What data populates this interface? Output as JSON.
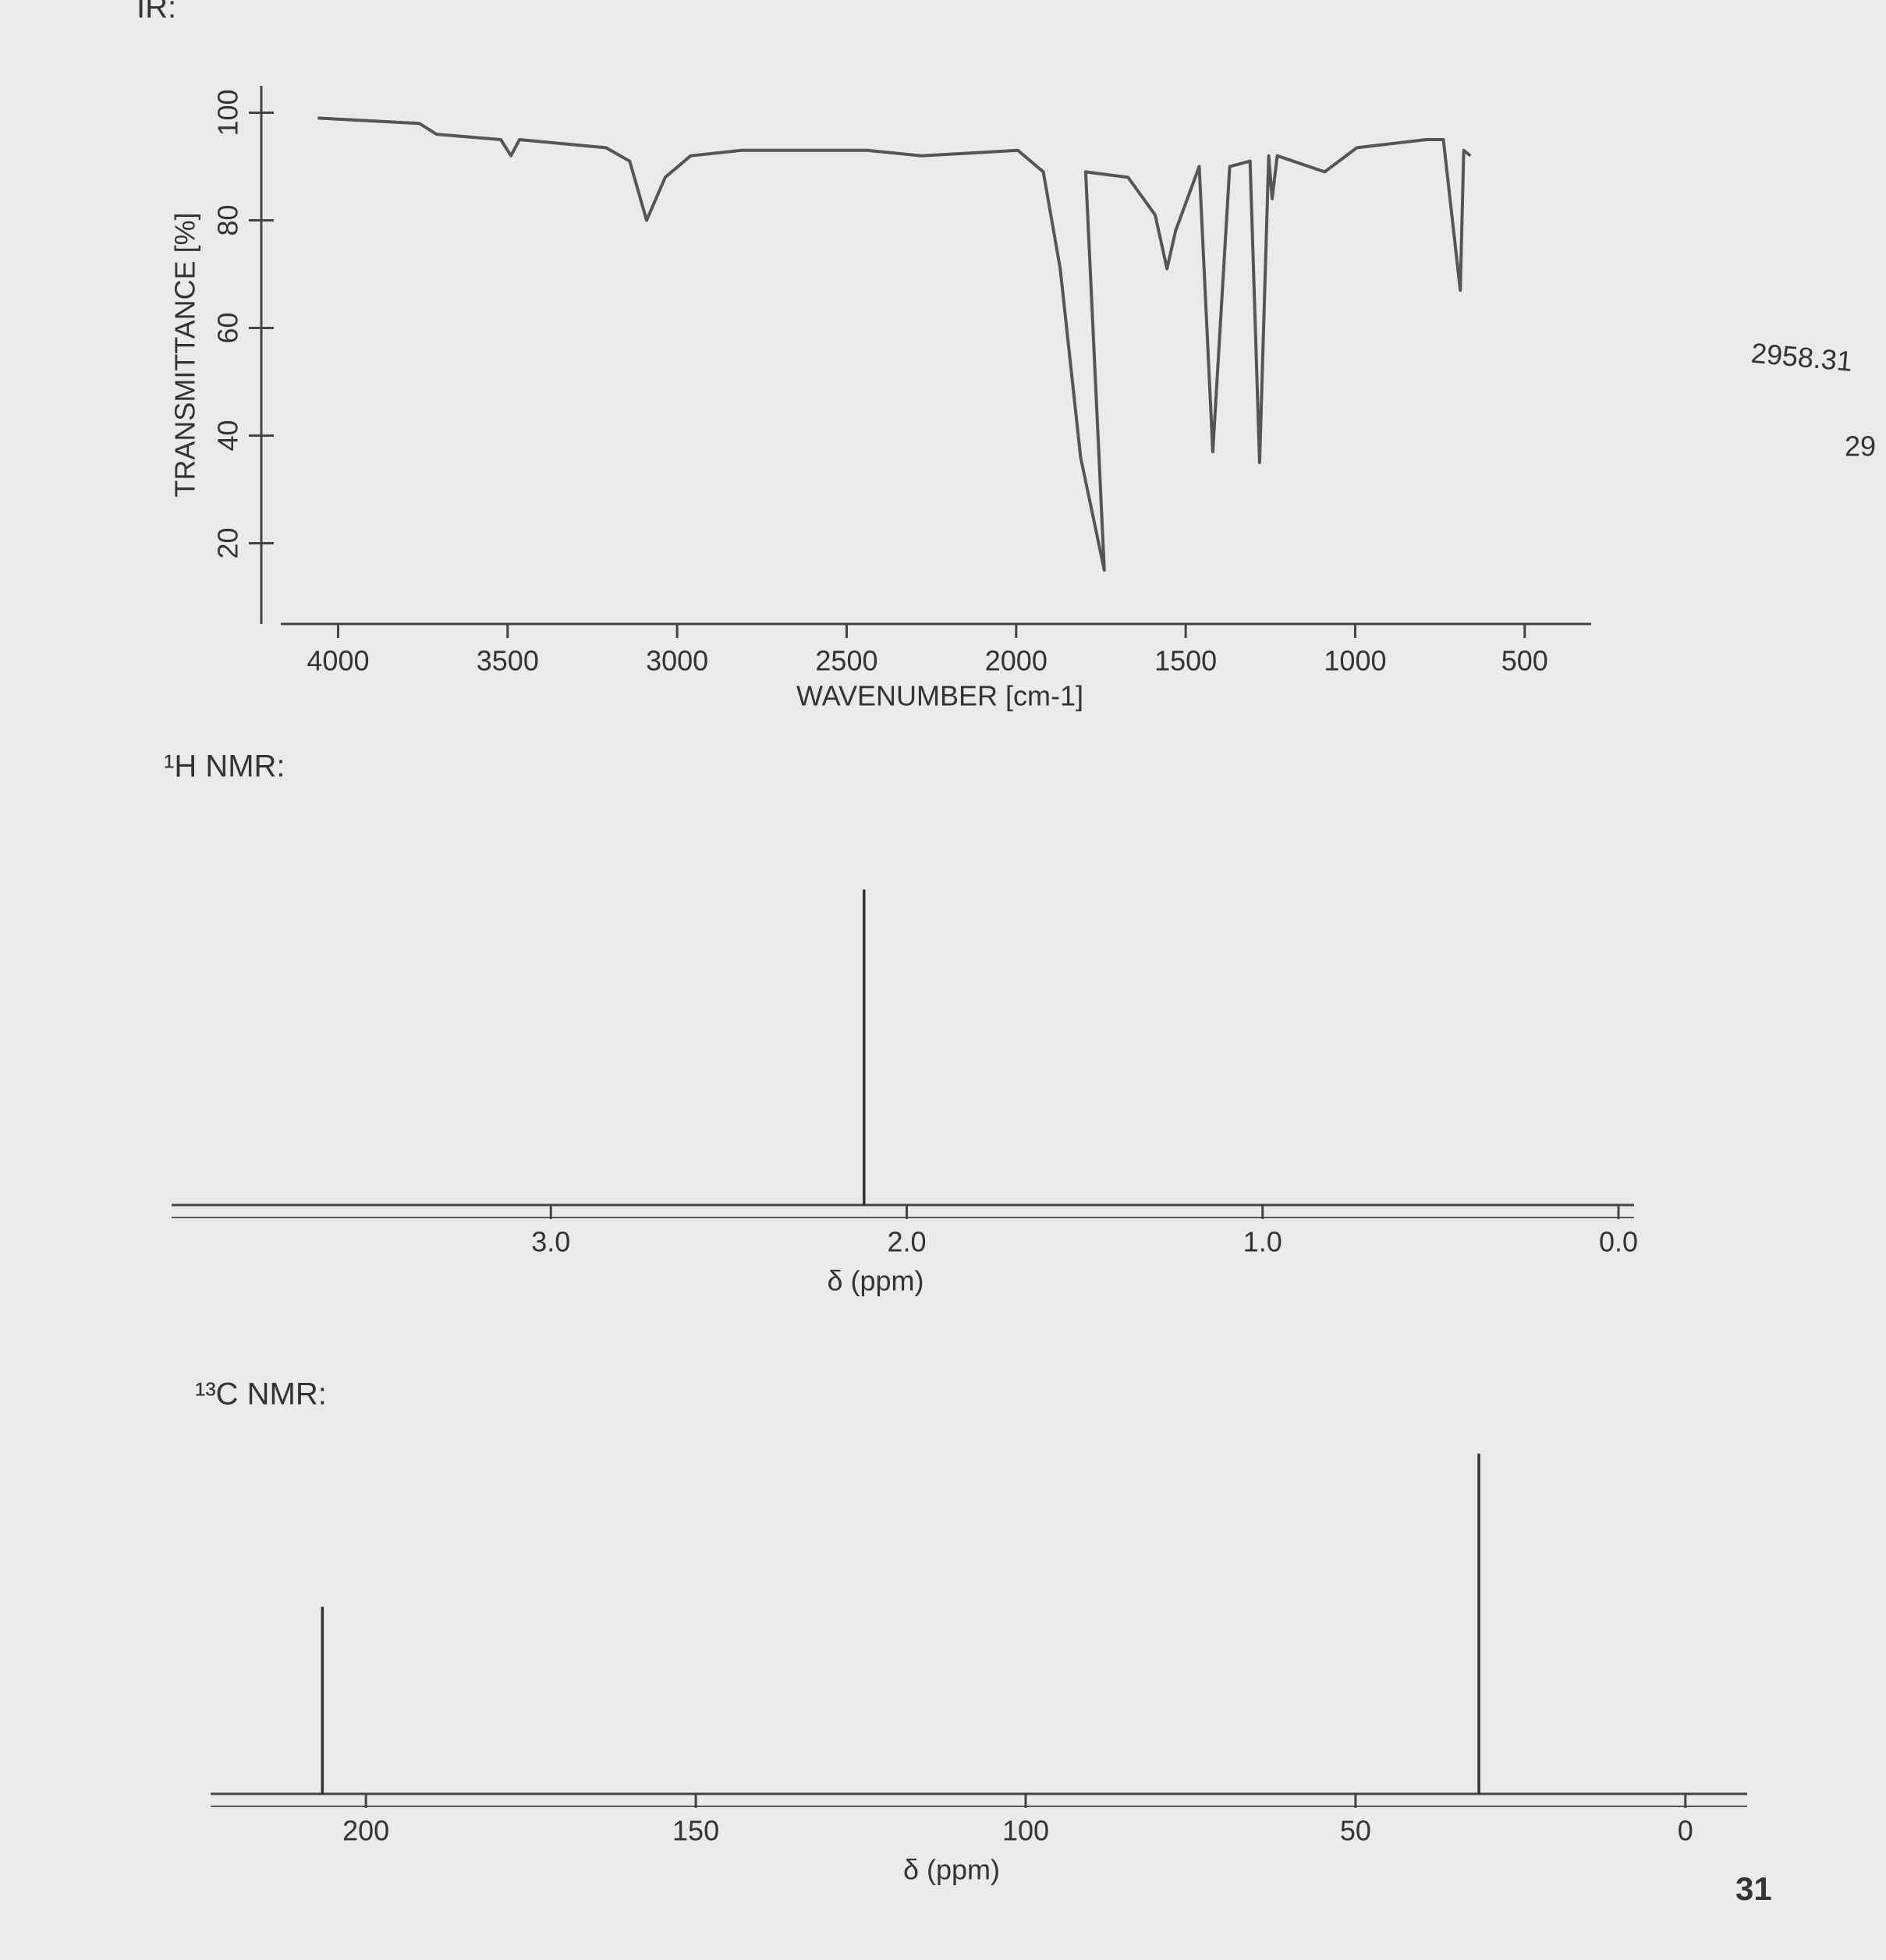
{
  "page": {
    "margin_notes": [
      "2958.31",
      "29"
    ],
    "page_number": "31"
  },
  "chart_data": [
    {
      "type": "line",
      "title": "IR:",
      "x_label": "WAVENUMBER [cm-1]",
      "y_label": "TRANSMITTANCE [%]",
      "xlim": [
        4100,
        350
      ],
      "ylim": [
        5,
        105
      ],
      "xticks": [
        4000,
        3500,
        3000,
        2500,
        2000,
        1500,
        1000,
        500
      ],
      "yticks": [
        20,
        40,
        60,
        80,
        100
      ],
      "color": "#555555",
      "x": [
        4060,
        3760,
        3710,
        3520,
        3490,
        3465,
        3210,
        3140,
        3090,
        3035,
        2960,
        2810,
        2440,
        2280,
        1995,
        1920,
        1870,
        1810,
        1740,
        1795,
        1670,
        1590,
        1555,
        1530,
        1460,
        1420,
        1370,
        1310,
        1282,
        1255,
        1245,
        1230,
        1090,
        995,
        790,
        740,
        690,
        680,
        660
      ],
      "values": [
        99,
        98,
        96,
        95,
        92,
        95,
        93.5,
        91,
        80,
        88,
        92,
        93,
        93,
        92,
        93,
        89,
        71,
        36,
        15,
        89,
        88,
        81,
        71,
        78,
        90,
        37,
        90,
        91,
        35,
        92,
        84,
        92,
        89,
        93.5,
        95,
        95,
        67,
        93,
        92
      ]
    },
    {
      "type": "stem",
      "title": "¹H NMR:",
      "x_label": "δ (ppm)",
      "xlim": [
        4.0,
        0.0
      ],
      "ylim": [
        0,
        1.1
      ],
      "xticks": [
        {
          "value": 3,
          "label": "3.0"
        },
        {
          "value": 2,
          "label": "2.0"
        },
        {
          "value": 1,
          "label": "1.0"
        },
        {
          "value": 0,
          "label": "0.0"
        }
      ],
      "color": "#333333",
      "x": [
        2.12
      ],
      "values": [
        1
      ]
    },
    {
      "type": "stem",
      "title": "¹³C NMR:",
      "x_label": "δ (ppm)",
      "xlim": [
        220,
        -7
      ],
      "ylim": [
        0,
        1.1
      ],
      "xticks": [
        200,
        150,
        100,
        50,
        0
      ],
      "color": "#333333",
      "x": [
        206.6,
        31.3
      ],
      "values": [
        0.55,
        1
      ]
    }
  ]
}
